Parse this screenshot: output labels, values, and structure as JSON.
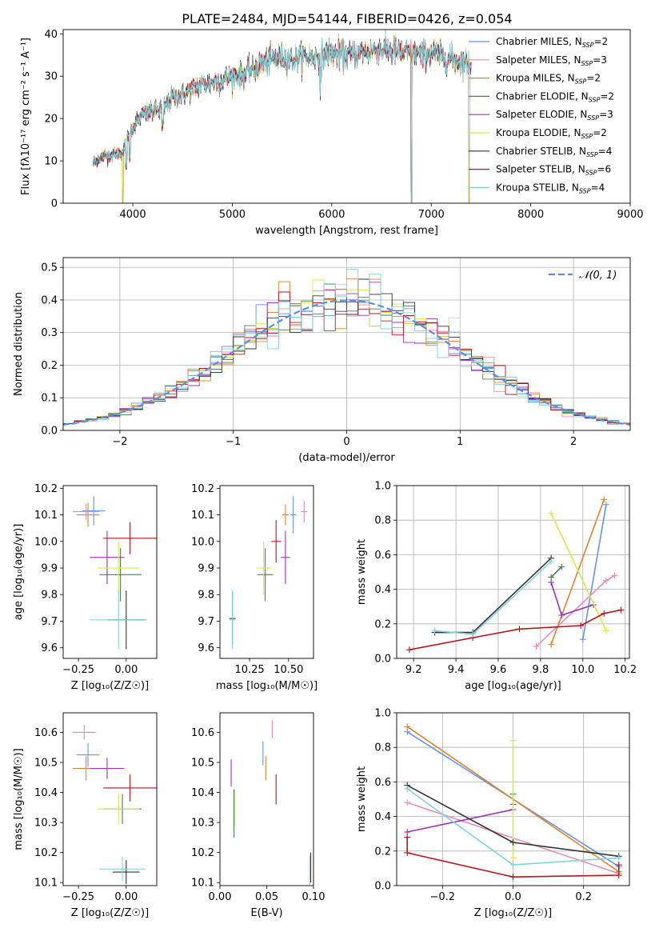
{
  "figure_title": "PLATE=2484, MJD=54144, FIBERID=0426, z=0.054",
  "colors": {
    "chabrier_miles": "#6495ed",
    "salpeter_miles": "#e98ab4",
    "kroupa_miles": "#e2832b",
    "chabrier_elodie": "#4e7e58",
    "salpeter_elodie": "#9b30b8",
    "kroupa_elodie": "#d7ea47",
    "chabrier_stelib": "#333333",
    "salpeter_stelib": "#b4161b",
    "kroupa_stelib": "#7fd4dc",
    "gaussian": "#5b8ee0",
    "grid": "#b0b0b0"
  },
  "chart_data": [
    {
      "id": "spectrum",
      "type": "line",
      "xlabel": "wavelength [Angstrom, rest frame]",
      "ylabel": "Flux [fλ10⁻¹⁷ erg cm⁻² s⁻¹ A⁻¹]",
      "xlim": [
        3300,
        9000
      ],
      "ylim": [
        0,
        41
      ],
      "xticks": [
        4000,
        5000,
        6000,
        7000,
        8000,
        9000
      ],
      "yticks": [
        0,
        10,
        20,
        30,
        40
      ],
      "grid": false,
      "legend_position": "right",
      "legend": [
        {
          "main": "Chabrier MILES, N",
          "sub": "SSP",
          "tail": "=2",
          "color_key": "chabrier_miles"
        },
        {
          "main": "Salpeter MILES, N",
          "sub": "SSP",
          "tail": "=3",
          "color_key": "salpeter_miles"
        },
        {
          "main": "Kroupa MILES, N",
          "sub": "SSP",
          "tail": "=2",
          "color_key": "kroupa_miles"
        },
        {
          "main": "Chabrier ELODIE, N",
          "sub": "SSP",
          "tail": "=2",
          "color_key": "chabrier_elodie"
        },
        {
          "main": "Salpeter ELODIE, N",
          "sub": "SSP",
          "tail": "=3",
          "color_key": "salpeter_elodie"
        },
        {
          "main": "Kroupa ELODIE, N",
          "sub": "SSP",
          "tail": "=2",
          "color_key": "kroupa_elodie"
        },
        {
          "main": "Chabrier STELIB, N",
          "sub": "SSP",
          "tail": "=4",
          "color_key": "chabrier_stelib"
        },
        {
          "main": "Salpeter STELIB, N",
          "sub": "SSP",
          "tail": "=6",
          "color_key": "salpeter_stelib"
        },
        {
          "main": "Kroupa STELIB, N",
          "sub": "SSP",
          "tail": "=4",
          "color_key": "kroupa_stelib"
        }
      ],
      "continuum": [
        [
          3600,
          9.5
        ],
        [
          3700,
          11
        ],
        [
          3800,
          11.5
        ],
        [
          3900,
          12
        ],
        [
          3960,
          16
        ],
        [
          4000,
          18
        ],
        [
          4100,
          21
        ],
        [
          4200,
          22
        ],
        [
          4300,
          22
        ],
        [
          4400,
          25
        ],
        [
          4500,
          25.5
        ],
        [
          4600,
          27
        ],
        [
          4700,
          28
        ],
        [
          4800,
          28.5
        ],
        [
          4900,
          29
        ],
        [
          5000,
          30
        ],
        [
          5100,
          30.5
        ],
        [
          5200,
          31.5
        ],
        [
          5300,
          33
        ],
        [
          5400,
          34
        ],
        [
          5500,
          34.5
        ],
        [
          5600,
          34
        ],
        [
          5700,
          34.5
        ],
        [
          5800,
          34.5
        ],
        [
          5900,
          35
        ],
        [
          6000,
          35.5
        ],
        [
          6100,
          35
        ],
        [
          6200,
          35
        ],
        [
          6300,
          35.5
        ],
        [
          6400,
          36
        ],
        [
          6500,
          36.5
        ],
        [
          6600,
          36
        ],
        [
          6700,
          35.5
        ],
        [
          6800,
          35.5
        ],
        [
          6900,
          35
        ],
        [
          7000,
          35.5
        ],
        [
          7100,
          34.5
        ],
        [
          7200,
          34
        ],
        [
          7300,
          33.5
        ],
        [
          7400,
          33
        ]
      ],
      "model_range_angstrom": [
        3600,
        7400
      ],
      "elodie_drop_angstrom": [
        3900,
        6800,
        7380
      ],
      "stelib_drop_angstrom": [
        6800,
        7420
      ]
    },
    {
      "id": "residuals",
      "type": "area",
      "xlabel": "(data-model)/error",
      "ylabel": "Normed distribution",
      "xlim": [
        -2.5,
        2.5
      ],
      "ylim": [
        0,
        0.53
      ],
      "xticks": [
        -2,
        -1,
        0,
        1,
        2
      ],
      "yticks": [
        0.0,
        0.1,
        0.2,
        0.3,
        0.4,
        0.5
      ],
      "grid": true,
      "legend_position": "top-right",
      "gaussian_label": "𝒩(0, 1)",
      "bin_width": 0.1
    },
    {
      "id": "age_vs_Z",
      "type": "scatter",
      "xlabel": "Z [log₁₀(Z/Z☉)]",
      "ylabel": "age  [log₁₀(age/yr)]",
      "xlim": [
        -0.33,
        0.16
      ],
      "ylim": [
        9.56,
        10.21
      ],
      "xticks": [
        -0.25,
        0.0
      ],
      "yticks": [
        9.6,
        9.7,
        9.8,
        9.9,
        10.0,
        10.1,
        10.2
      ],
      "grid": false,
      "points": [
        {
          "key": "chabrier_miles",
          "x": -0.17,
          "y": 10.115,
          "xerr": 0.06,
          "yerr": 0.055
        },
        {
          "key": "salpeter_miles",
          "x": -0.21,
          "y": 10.112,
          "xerr": 0.07,
          "yerr": 0.03
        },
        {
          "key": "kroupa_miles",
          "x": -0.2,
          "y": 10.1,
          "xerr": 0.06,
          "yerr": 0.045
        },
        {
          "key": "chabrier_elodie",
          "x": -0.03,
          "y": 9.875,
          "xerr": 0.11,
          "yerr": 0.1
        },
        {
          "key": "salpeter_elodie",
          "x": -0.1,
          "y": 9.94,
          "xerr": 0.09,
          "yerr": 0.1
        },
        {
          "key": "kroupa_elodie",
          "x": -0.04,
          "y": 9.9,
          "xerr": 0.11,
          "yerr": 0.1
        },
        {
          "key": "chabrier_stelib",
          "x": 0.0,
          "y": 9.705,
          "xerr": 0.1,
          "yerr": 0.11
        },
        {
          "key": "salpeter_stelib",
          "x": 0.02,
          "y": 10.012,
          "xerr": 0.14,
          "yerr": 0.06
        },
        {
          "key": "kroupa_stelib",
          "x": -0.04,
          "y": 9.705,
          "xerr": 0.15,
          "yerr": 0.11
        }
      ]
    },
    {
      "id": "age_vs_mass",
      "type": "scatter",
      "xlabel": "mass [log₁₀(M/M☉)]",
      "ylabel": "",
      "xlim": [
        10.06,
        10.66
      ],
      "ylim": [
        9.56,
        10.21
      ],
      "xticks": [
        10.25,
        10.5
      ],
      "yticks": [
        9.6,
        9.7,
        9.8,
        9.9,
        10.0,
        10.1,
        10.2
      ],
      "grid": false,
      "points": [
        {
          "key": "chabrier_miles",
          "x": 10.53,
          "y": 10.1,
          "xerr": 0.02,
          "yerr": 0.07
        },
        {
          "key": "salpeter_miles",
          "x": 10.6,
          "y": 10.112,
          "xerr": 0.02,
          "yerr": 0.04
        },
        {
          "key": "kroupa_miles",
          "x": 10.48,
          "y": 10.1,
          "xerr": 0.02,
          "yerr": 0.04
        },
        {
          "key": "chabrier_elodie",
          "x": 10.35,
          "y": 9.875,
          "xerr": 0.05,
          "yerr": 0.1
        },
        {
          "key": "salpeter_elodie",
          "x": 10.48,
          "y": 9.94,
          "xerr": 0.03,
          "yerr": 0.1
        },
        {
          "key": "kroupa_elodie",
          "x": 10.34,
          "y": 9.9,
          "xerr": 0.05,
          "yerr": 0.1
        },
        {
          "key": "chabrier_stelib",
          "x": 10.14,
          "y": 9.71,
          "xerr": 0.02,
          "yerr": 0.1
        },
        {
          "key": "salpeter_stelib",
          "x": 10.42,
          "y": 10.0,
          "xerr": 0.03,
          "yerr": 0.08
        },
        {
          "key": "kroupa_stelib",
          "x": 10.14,
          "y": 9.705,
          "xerr": 0.02,
          "yerr": 0.11
        }
      ]
    },
    {
      "id": "massweight_vs_age",
      "type": "line",
      "xlabel": "age  [log₁₀(age/yr)]",
      "ylabel": "mass weight",
      "xlim": [
        9.12,
        10.22
      ],
      "ylim": [
        0,
        1
      ],
      "xticks": [
        9.2,
        9.4,
        9.6,
        9.8,
        10.0,
        10.2
      ],
      "yticks": [
        0.0,
        0.2,
        0.4,
        0.6,
        0.8,
        1.0
      ],
      "grid": true,
      "series": [
        {
          "key": "chabrier_miles",
          "x": [
            10.0,
            10.11
          ],
          "y": [
            0.11,
            0.89
          ]
        },
        {
          "key": "salpeter_miles",
          "x": [
            9.78,
            10.11,
            10.15
          ],
          "y": [
            0.07,
            0.45,
            0.48
          ]
        },
        {
          "key": "kroupa_miles",
          "x": [
            9.85,
            10.1
          ],
          "y": [
            0.08,
            0.92
          ]
        },
        {
          "key": "chabrier_elodie",
          "x": [
            9.85,
            9.9
          ],
          "y": [
            0.47,
            0.53
          ]
        },
        {
          "key": "salpeter_elodie",
          "x": [
            9.85,
            9.9,
            10.05
          ],
          "y": [
            0.44,
            0.25,
            0.31
          ]
        },
        {
          "key": "kroupa_elodie",
          "x": [
            9.85,
            10.11
          ],
          "y": [
            0.84,
            0.16
          ]
        },
        {
          "key": "chabrier_stelib",
          "x": [
            9.3,
            9.48,
            9.85
          ],
          "y": [
            0.15,
            0.15,
            0.58
          ]
        },
        {
          "key": "salpeter_stelib",
          "x": [
            9.18,
            9.48,
            9.7,
            9.99,
            10.1,
            10.18
          ],
          "y": [
            0.05,
            0.12,
            0.17,
            0.19,
            0.26,
            0.28
          ]
        },
        {
          "key": "kroupa_stelib",
          "x": [
            9.3,
            9.48,
            9.85
          ],
          "y": [
            0.16,
            0.14,
            0.56
          ]
        }
      ]
    },
    {
      "id": "mass_vs_Z",
      "type": "scatter",
      "xlabel": "Z [log₁₀(Z/Z☉)]",
      "ylabel": "mass [log₁₀(M/M☉)]",
      "xlim": [
        -0.33,
        0.16
      ],
      "ylim": [
        10.09,
        10.665
      ],
      "xticks": [
        -0.25,
        0.0
      ],
      "yticks": [
        10.1,
        10.2,
        10.3,
        10.4,
        10.5,
        10.6
      ],
      "grid": false,
      "points": [
        {
          "key": "chabrier_miles",
          "x": -0.2,
          "y": 10.525,
          "xerr": 0.06,
          "yerr": 0.04
        },
        {
          "key": "salpeter_miles",
          "x": -0.22,
          "y": 10.6,
          "xerr": 0.06,
          "yerr": 0.025
        },
        {
          "key": "kroupa_miles",
          "x": -0.21,
          "y": 10.48,
          "xerr": 0.07,
          "yerr": 0.04
        },
        {
          "key": "chabrier_elodie",
          "x": -0.02,
          "y": 10.345,
          "xerr": 0.1,
          "yerr": 0.05
        },
        {
          "key": "salpeter_elodie",
          "x": -0.1,
          "y": 10.48,
          "xerr": 0.09,
          "yerr": 0.035
        },
        {
          "key": "kroupa_elodie",
          "x": -0.04,
          "y": 10.345,
          "xerr": 0.11,
          "yerr": 0.05
        },
        {
          "key": "chabrier_stelib",
          "x": 0.0,
          "y": 10.135,
          "xerr": 0.07,
          "yerr": 0.04
        },
        {
          "key": "salpeter_stelib",
          "x": 0.02,
          "y": 10.415,
          "xerr": 0.14,
          "yerr": 0.045
        },
        {
          "key": "kroupa_stelib",
          "x": -0.02,
          "y": 10.145,
          "xerr": 0.12,
          "yerr": 0.04
        }
      ]
    },
    {
      "id": "mass_vs_ebv",
      "type": "scatter",
      "xlabel": "E(B-V)",
      "ylabel": "",
      "xlim": [
        0.0,
        0.1
      ],
      "ylim": [
        10.09,
        10.665
      ],
      "xticks": [
        0.0,
        0.05,
        0.1
      ],
      "yticks": [
        10.1,
        10.2,
        10.3,
        10.4,
        10.5,
        10.6
      ],
      "grid": false,
      "points": [
        {
          "key": "chabrier_miles",
          "x": 0.046,
          "y": 10.53,
          "xerr": 0.0,
          "yerr": 0.04
        },
        {
          "key": "salpeter_miles",
          "x": 0.056,
          "y": 10.61,
          "xerr": 0.0,
          "yerr": 0.03
        },
        {
          "key": "kroupa_miles",
          "x": 0.049,
          "y": 10.48,
          "xerr": 0.0,
          "yerr": 0.04
        },
        {
          "key": "chabrier_elodie",
          "x": 0.015,
          "y": 10.33,
          "xerr": 0.0,
          "yerr": 0.08
        },
        {
          "key": "salpeter_elodie",
          "x": 0.012,
          "y": 10.465,
          "xerr": 0.0,
          "yerr": 0.045
        },
        {
          "key": "kroupa_elodie",
          "x": 0.016,
          "y": 10.35,
          "xerr": 0.0,
          "yerr": 0.06
        },
        {
          "key": "chabrier_stelib",
          "x": 0.097,
          "y": 10.15,
          "xerr": 0.0,
          "yerr": 0.05
        },
        {
          "key": "salpeter_stelib",
          "x": 0.06,
          "y": 10.41,
          "xerr": 0.0,
          "yerr": 0.05
        },
        {
          "key": "kroupa_stelib",
          "x": 0.096,
          "y": 10.14,
          "xerr": 0.0,
          "yerr": 0.05
        }
      ]
    },
    {
      "id": "massweight_vs_Z",
      "type": "line",
      "xlabel": "Z [log₁₀(Z/Z☉)]",
      "ylabel": "mass weight",
      "xlim": [
        -0.33,
        0.33
      ],
      "ylim": [
        0,
        1
      ],
      "xticks": [
        -0.2,
        0.0,
        0.2
      ],
      "yticks": [
        0.0,
        0.2,
        0.4,
        0.6,
        0.8,
        1.0
      ],
      "grid": true,
      "series": [
        {
          "key": "chabrier_miles",
          "x": [
            -0.3,
            0.3
          ],
          "y": [
            0.89,
            0.11
          ]
        },
        {
          "key": "salpeter_miles",
          "x": [
            -0.3,
            0.3
          ],
          "y": [
            0.48,
            0.07
          ]
        },
        {
          "key": "kroupa_miles",
          "x": [
            -0.3,
            0.3
          ],
          "y": [
            0.92,
            0.08
          ]
        },
        {
          "key": "chabrier_elodie",
          "x": [
            0.0,
            0.0
          ],
          "y": [
            0.53,
            0.47
          ]
        },
        {
          "key": "salpeter_elodie",
          "x": [
            -0.3,
            0.0
          ],
          "y": [
            0.31,
            0.44
          ]
        },
        {
          "key": "kroupa_elodie",
          "x": [
            0.0,
            0.0
          ],
          "y": [
            0.84,
            0.16
          ]
        },
        {
          "key": "chabrier_stelib",
          "x": [
            -0.3,
            0.0,
            0.3
          ],
          "y": [
            0.58,
            0.25,
            0.17
          ]
        },
        {
          "key": "salpeter_stelib",
          "x": [
            -0.3,
            -0.3,
            0.0,
            0.3,
            0.3
          ],
          "y": [
            0.28,
            0.19,
            0.05,
            0.06,
            0.12
          ]
        },
        {
          "key": "kroupa_stelib",
          "x": [
            -0.3,
            0.0,
            0.3
          ],
          "y": [
            0.56,
            0.12,
            0.16
          ]
        }
      ]
    }
  ]
}
